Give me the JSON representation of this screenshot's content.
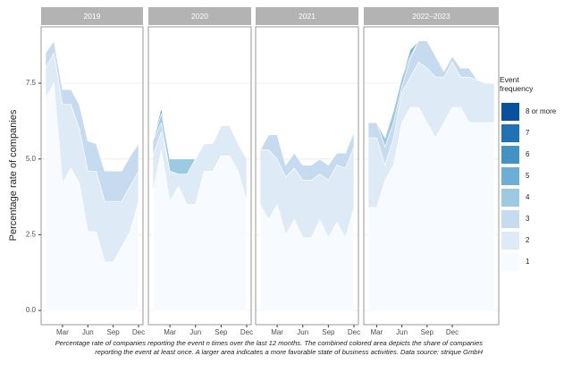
{
  "chart_data": {
    "type": "area",
    "ylabel": "Percentage rate of companies",
    "legend_title": "Event frequency",
    "caption": "Percentage rate of companies reporting the event n times over the last 12 months. The combined colored area depicts the share of companies reporting the event at least once. A larger area indicates a more favorable state of business activities. Data source: strique GmbH",
    "ylim": [
      -0.47,
      9.36
    ],
    "yticks": [
      {
        "value": 0,
        "label": "0.0"
      },
      2.5,
      {
        "value": 5,
        "label": "5.0"
      },
      7.5
    ],
    "grid": true,
    "facets": [
      {
        "title": "2019",
        "categories": [
          null,
          null,
          "Mar",
          null,
          null,
          "Jun",
          null,
          null,
          "Sep",
          null,
          null,
          "Dec"
        ]
      },
      {
        "title": "2020",
        "categories": [
          null,
          null,
          "Mar",
          null,
          null,
          "Jun",
          null,
          null,
          "Sep",
          null,
          null,
          "Dec"
        ]
      },
      {
        "title": "2021",
        "categories": [
          null,
          null,
          "Mar",
          null,
          null,
          "Jun",
          null,
          null,
          "Sep",
          null,
          null,
          "Dec"
        ]
      },
      {
        "title": "2022–2023",
        "categories": [
          null,
          "Mar",
          null,
          null,
          "Jun",
          null,
          null,
          "Sep",
          null,
          null,
          "Dec",
          null,
          null,
          null,
          null,
          null
        ]
      }
    ],
    "series": [
      {
        "name": "1",
        "color": "#f7fbff",
        "values": [
          [
            7.0,
            7.5,
            4.2,
            4.7,
            4.2,
            2.6,
            2.6,
            1.6,
            1.6,
            2.1,
            2.6,
            3.6
          ],
          [
            3.9,
            5.3,
            3.6,
            4.1,
            3.5,
            3.5,
            4.6,
            4.6,
            5.1,
            5.1,
            4.6,
            3.6
          ],
          [
            3.5,
            3.0,
            3.5,
            2.5,
            3.0,
            2.4,
            2.4,
            3.0,
            2.4,
            2.9,
            2.4,
            3.4
          ],
          [
            3.4,
            3.4,
            4.3,
            4.8,
            6.2,
            6.7,
            6.7,
            6.2,
            5.7,
            6.2,
            6.7,
            6.7,
            6.2,
            6.2,
            6.2,
            6.2
          ]
        ]
      },
      {
        "name": "2",
        "color": "#deebf7",
        "values": [
          [
            1.0,
            1.0,
            2.6,
            2.1,
            1.8,
            2.0,
            2.0,
            2.0,
            2.0,
            1.5,
            1.5,
            1.0
          ],
          [
            1.2,
            0.6,
            1.0,
            0.4,
            1.0,
            1.5,
            0.9,
            0.9,
            1.0,
            1.0,
            0.9,
            1.4
          ],
          [
            1.8,
            2.3,
            1.5,
            1.9,
            1.7,
            1.9,
            1.9,
            1.5,
            1.9,
            1.9,
            2.3,
            2.0
          ],
          [
            2.3,
            2.3,
            0.5,
            0.9,
            1.0,
            1.0,
            1.5,
            1.8,
            2.0,
            1.5,
            1.5,
            1.0,
            1.5,
            1.4,
            1.3,
            1.3
          ]
        ]
      },
      {
        "name": "3",
        "color": "#c6dbef",
        "values": [
          [
            0.5,
            0.4,
            0.5,
            0.5,
            0.8,
            1.0,
            0.9,
            1.0,
            1.0,
            1.0,
            1.0,
            0.9
          ],
          [
            0.5,
            0.3,
            0,
            0,
            0,
            0,
            0,
            0,
            0,
            0,
            0,
            0
          ],
          [
            0,
            0.5,
            0.8,
            0.4,
            0.5,
            0.5,
            0.5,
            0.5,
            0.5,
            0.4,
            0.5,
            0.5
          ],
          [
            0.5,
            0.5,
            0.6,
            0.5,
            0.2,
            0.6,
            0.7,
            0.9,
            0.7,
            0.2,
            0.2,
            0.3,
            0.3,
            0,
            0,
            0
          ]
        ]
      },
      {
        "name": "4",
        "color": "#9ecae1",
        "values": [
          [
            0,
            0,
            0,
            0,
            0,
            0,
            0,
            0,
            0,
            0,
            0,
            0
          ],
          [
            0,
            0.3,
            0.4,
            0.5,
            0.5,
            0,
            0,
            0,
            0,
            0,
            0,
            0
          ],
          [
            0,
            0,
            0,
            0,
            0,
            0,
            0,
            0,
            0,
            0,
            0,
            0
          ],
          [
            0,
            0,
            0.3,
            0.4,
            0.3,
            0.1,
            0,
            0,
            0,
            0,
            0,
            0,
            0,
            0,
            0,
            0
          ]
        ]
      },
      {
        "name": "5",
        "color": "#6baed6",
        "values": [
          [
            0,
            0,
            0,
            0,
            0,
            0,
            0,
            0,
            0,
            0,
            0,
            0
          ],
          [
            0,
            0.2,
            0,
            0,
            0,
            0,
            0,
            0,
            0,
            0,
            0,
            0
          ],
          [
            0,
            0,
            0,
            0,
            0,
            0,
            0,
            0,
            0,
            0,
            0,
            0
          ],
          [
            0,
            0,
            0,
            0,
            0,
            0.2,
            0,
            0,
            0,
            0,
            0,
            0,
            0,
            0,
            0,
            0
          ]
        ]
      },
      {
        "name": "6",
        "color": "#4292c6",
        "values": [
          [
            0,
            0,
            0,
            0,
            0,
            0,
            0,
            0,
            0,
            0,
            0,
            0
          ],
          [
            0,
            0,
            0,
            0,
            0,
            0,
            0,
            0,
            0,
            0,
            0,
            0
          ],
          [
            0,
            0,
            0,
            0,
            0,
            0,
            0,
            0,
            0,
            0,
            0,
            0
          ],
          [
            0,
            0,
            0,
            0,
            0,
            0,
            0,
            0,
            0,
            0,
            0,
            0,
            0,
            0,
            0,
            0
          ]
        ]
      },
      {
        "name": "7",
        "color": "#2171b5",
        "values": [
          [
            0,
            0,
            0,
            0,
            0,
            0,
            0,
            0,
            0,
            0,
            0,
            0
          ],
          [
            0,
            0,
            0,
            0,
            0,
            0,
            0,
            0,
            0,
            0,
            0,
            0
          ],
          [
            0,
            0,
            0,
            0,
            0,
            0,
            0,
            0,
            0,
            0,
            0,
            0
          ],
          [
            0,
            0,
            0,
            0,
            0,
            0,
            0,
            0,
            0,
            0,
            0,
            0,
            0,
            0,
            0,
            0
          ]
        ]
      },
      {
        "name": "8 or more",
        "color": "#08519c",
        "values": [
          [
            0,
            0,
            0,
            0,
            0,
            0,
            0,
            0,
            0,
            0,
            0,
            0
          ],
          [
            0,
            0,
            0,
            0,
            0,
            0,
            0,
            0,
            0,
            0,
            0,
            0
          ],
          [
            0,
            0,
            0,
            0,
            0,
            0,
            0,
            0,
            0,
            0,
            0,
            0
          ],
          [
            0,
            0,
            0,
            0,
            0,
            0,
            0,
            0,
            0,
            0,
            0,
            0,
            0,
            0,
            0,
            0
          ]
        ]
      }
    ]
  }
}
